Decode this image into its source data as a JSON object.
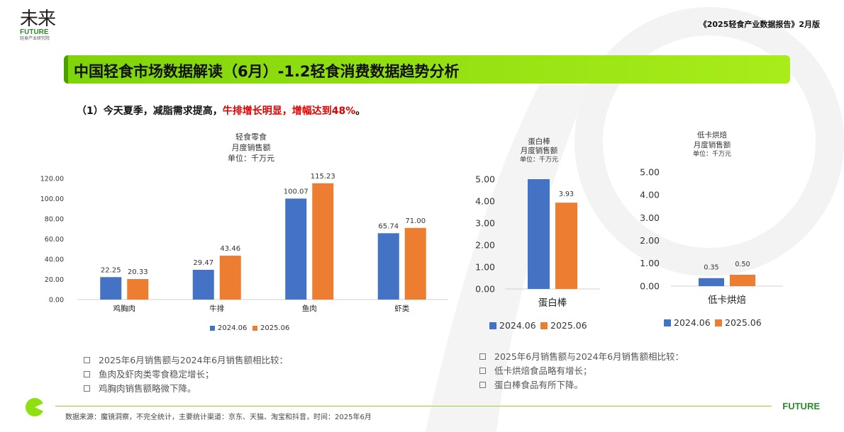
{
  "logo": {
    "zh": "未来",
    "en": "FUTURE",
    "sub": "轻食产业研究院"
  },
  "report_tag": "《2025轻食产业数据报告》2月版",
  "title": "中国轻食市场数据解读（6月）-1.2轻食消费数据趋势分析",
  "subtitle": {
    "prefix": "（1）今天夏季，减脂需求提高，",
    "highlight": "牛排增长明显，增幅达到48%",
    "suffix": "。"
  },
  "chart_data": [
    {
      "type": "bar",
      "title": "轻食零食",
      "subtitle": "月度销售额",
      "unit": "单位：千万元",
      "categories": [
        "鸡胸肉",
        "牛排",
        "鱼肉",
        "虾类"
      ],
      "series": [
        {
          "name": "2024.06",
          "values": [
            22.25,
            29.47,
            100.07,
            65.74
          ],
          "labels": [
            "22.25",
            "29.47",
            "100.07",
            "65.74"
          ]
        },
        {
          "name": "2025.06",
          "values": [
            20.33,
            43.46,
            115.23,
            71.0
          ],
          "labels": [
            "20.33",
            "43.46",
            "115.23",
            "71.00"
          ]
        }
      ],
      "ylim": [
        0,
        120
      ],
      "yticks": [
        "0.00",
        "20.00",
        "40.00",
        "60.00",
        "80.00",
        "100.00",
        "120.00"
      ],
      "grid": false,
      "legend": "bottom"
    },
    {
      "type": "bar",
      "title": "蛋白棒",
      "subtitle": "月度销售额",
      "unit": "单位：千万元",
      "categories": [
        "蛋白棒"
      ],
      "series": [
        {
          "name": "2024.06",
          "values": [
            5.0
          ],
          "labels": [
            ""
          ]
        },
        {
          "name": "2025.06",
          "values": [
            3.93
          ],
          "labels": [
            "3.93"
          ]
        }
      ],
      "ylim": [
        0,
        5
      ],
      "yticks": [
        "0.00",
        "1.00",
        "2.00",
        "3.00",
        "4.00",
        "5.00"
      ],
      "grid": false,
      "legend": "bottom"
    },
    {
      "type": "bar",
      "title": "低卡烘焙",
      "subtitle": "月度销售额",
      "unit": "单位：千万元",
      "categories": [
        "低卡烘焙"
      ],
      "series": [
        {
          "name": "2024.06",
          "values": [
            0.35
          ],
          "labels": [
            "0.35"
          ]
        },
        {
          "name": "2025.06",
          "values": [
            0.5
          ],
          "labels": [
            "0.50"
          ]
        }
      ],
      "ylim": [
        0,
        5
      ],
      "yticks": [
        "0.00",
        "1.00",
        "2.00",
        "3.00",
        "4.00",
        "5.00"
      ],
      "grid": false,
      "legend": "bottom"
    }
  ],
  "colors": {
    "series_2024": "#4472c4",
    "series_2025": "#ed7d31",
    "accent_green": "#8fe010"
  },
  "notes_left": [
    "2025年6月销售额与2024年6月销售额相比较：",
    "鱼肉及虾肉类零食稳定增长；",
    "鸡胸肉销售额略微下降。"
  ],
  "notes_right": [
    "2025年6月销售额与2024年6月销售额相比较：",
    "低卡烘焙食品略有增长；",
    "蛋白棒食品有所下降。"
  ],
  "footer": {
    "source": "数据来源：魔镜洞察，不完全统计，主要统计渠道：京东、天猫、淘宝和抖音，时间：2025年6月",
    "brand": "FUTURE"
  }
}
